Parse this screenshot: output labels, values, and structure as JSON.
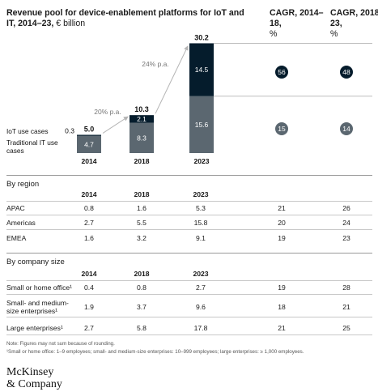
{
  "title": {
    "main": "Revenue pool for device-enablement platforms for IoT and IT, 2014–23,",
    "unit": "€ billion"
  },
  "cagr_headers": [
    {
      "label": "CAGR, 2014–18,",
      "unit": "%"
    },
    {
      "label": "CAGR, 2018–23,",
      "unit": "%"
    }
  ],
  "chart_data": {
    "type": "bar",
    "stacked": true,
    "categories": [
      "2014",
      "2018",
      "2023"
    ],
    "series": [
      {
        "name": "Traditional IT use cases",
        "values": [
          4.7,
          8.3,
          15.6
        ],
        "color": "#5b6770"
      },
      {
        "name": "IoT use cases",
        "values": [
          0.3,
          2.1,
          14.5
        ],
        "color": "#051c2c"
      }
    ],
    "totals": [
      "5.0",
      "10.3",
      "30.2"
    ],
    "growth_annotations": [
      "20% p.a.",
      "24% p.a."
    ],
    "cagr": {
      "iot": [
        "56",
        "48"
      ],
      "traditional": [
        "15",
        "14"
      ]
    },
    "ylim": [
      0,
      32
    ]
  },
  "region": {
    "title": "By region",
    "columns": [
      "2014",
      "2018",
      "2023"
    ],
    "rows": [
      {
        "label": "APAC",
        "values": [
          "0.8",
          "1.6",
          "5.3"
        ],
        "cagr": [
          "21",
          "26"
        ]
      },
      {
        "label": "Americas",
        "values": [
          "2.7",
          "5.5",
          "15.8"
        ],
        "cagr": [
          "20",
          "24"
        ]
      },
      {
        "label": "EMEA",
        "values": [
          "1.6",
          "3.2",
          "9.1"
        ],
        "cagr": [
          "19",
          "23"
        ]
      }
    ]
  },
  "company": {
    "title": "By company size",
    "columns": [
      "2014",
      "2018",
      "2023"
    ],
    "rows": [
      {
        "label": "Small or home office¹",
        "values": [
          "0.4",
          "0.8",
          "2.7"
        ],
        "cagr": [
          "19",
          "28"
        ]
      },
      {
        "label": "Small- and medium-size enterprises¹",
        "values": [
          "1.9",
          "3.7",
          "9.6"
        ],
        "cagr": [
          "18",
          "21"
        ]
      },
      {
        "label": "Large enterprises¹",
        "values": [
          "2.7",
          "5.8",
          "17.8"
        ],
        "cagr": [
          "21",
          "25"
        ]
      }
    ]
  },
  "notes": {
    "line1": "Note: Figures may not sum because of rounding.",
    "line2": "¹Small or home office: 1–9 employees; small- and medium-size enterprises: 10–999 employees; large enterprises: ≥ 1,000 employees."
  },
  "logo": {
    "line1": "McKinsey",
    "line2": "& Company"
  }
}
